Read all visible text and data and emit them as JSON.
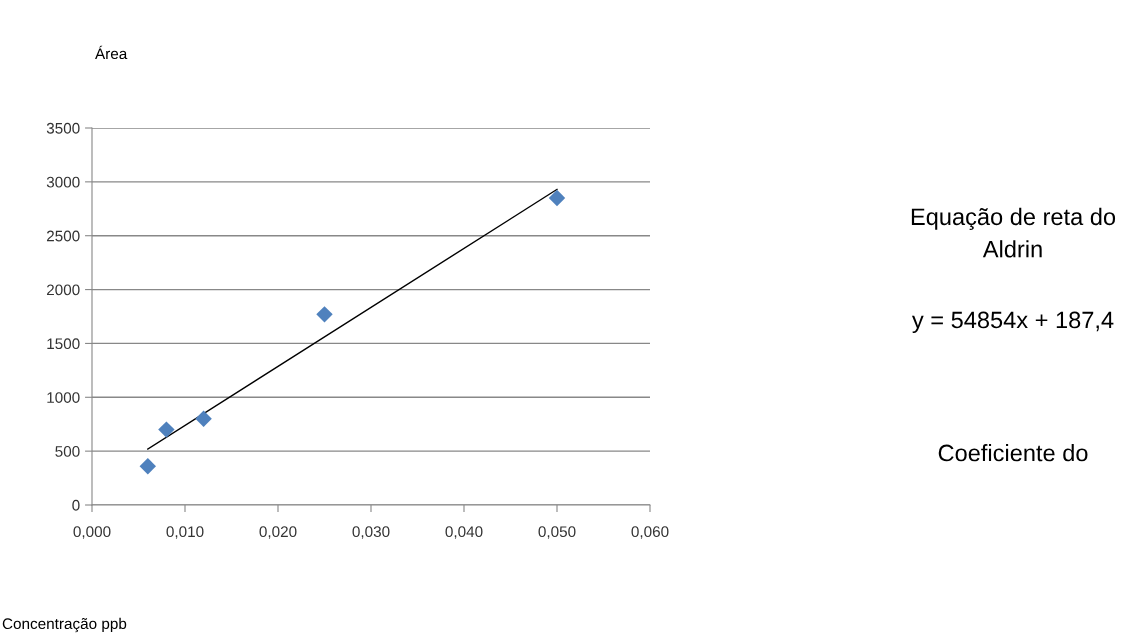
{
  "chart_data": {
    "type": "scatter",
    "ylabel": "Área",
    "annotations": [
      "Equação de reta do\nAldrin",
      "y = 54854x + 187,4",
      "Coeficiente do",
      "Concentração ppb"
    ],
    "x": [
      0.006,
      0.008,
      0.012,
      0.025,
      0.05
    ],
    "series": [
      {
        "color": "#4f81bd",
        "marker": "diamond",
        "values": [
          360,
          700,
          800,
          1770,
          2850
        ]
      },
      {
        "type": "line",
        "color": "#000000",
        "marker": "none",
        "x": [
          0.006,
          0.05
        ],
        "values": [
          520,
          2930
        ]
      }
    ],
    "xlim": [
      0,
      0.06
    ],
    "ylim": [
      0,
      3500
    ],
    "xticks": [
      {
        "value": 0,
        "label": "0,000"
      },
      {
        "value": 0.01,
        "label": "0,010"
      },
      {
        "value": 0.02,
        "label": "0,020"
      },
      {
        "value": 0.03,
        "label": "0,030"
      },
      {
        "value": 0.04,
        "label": "0,040"
      },
      {
        "value": 0.05,
        "label": "0,050"
      },
      {
        "value": 0.06,
        "label": "0,060"
      }
    ],
    "yticks": [
      0,
      500,
      1000,
      1500,
      2000,
      2500,
      3000,
      3500
    ],
    "grid": "y",
    "legend": false
  }
}
